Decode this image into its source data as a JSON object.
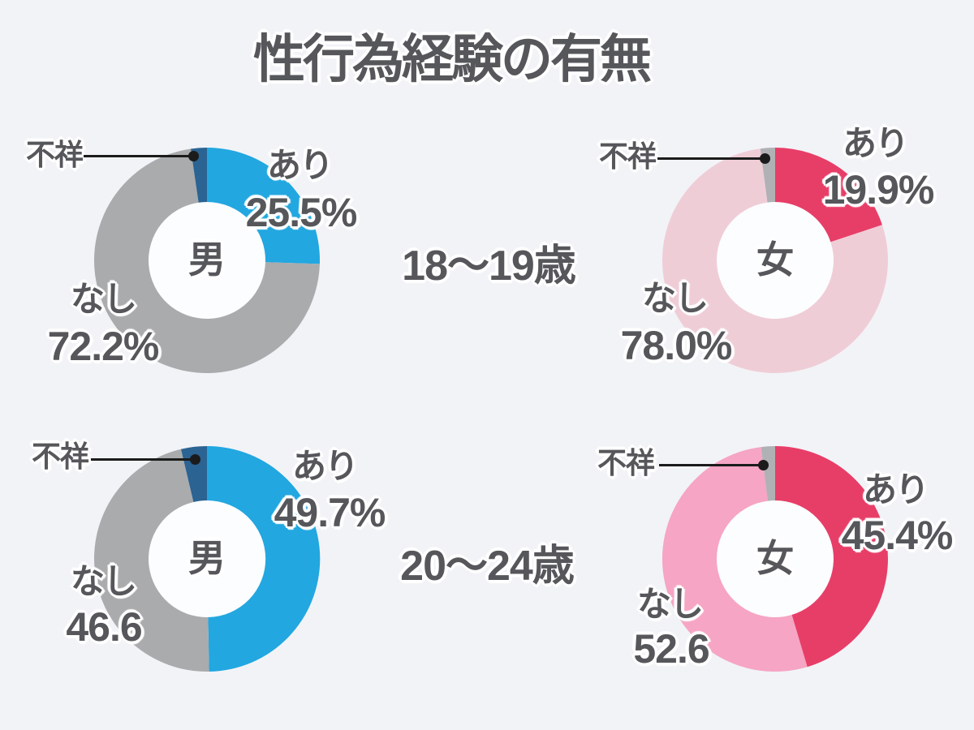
{
  "page": {
    "title": "性行為経験の有無",
    "background_color": "#f2f3f7",
    "text_color": "#56575b",
    "hole_color": "#fcfdfe",
    "leader_color": "#1b1b1b"
  },
  "age_groups": [
    {
      "label": "18〜19歳"
    },
    {
      "label": "20〜24歳"
    }
  ],
  "chart_data": [
    {
      "type": "pie",
      "variant": "donut",
      "age_group": "18〜19歳",
      "center_label": "男",
      "slices": [
        {
          "label": "あり",
          "value": 25.5,
          "value_text": "25.5%",
          "color": "#22a7e0"
        },
        {
          "label": "なし",
          "value": 72.2,
          "value_text": "72.2%",
          "color": "#a9abad"
        },
        {
          "label": "不祥",
          "value": 2.3,
          "value_text": "",
          "color": "#2b6392"
        }
      ]
    },
    {
      "type": "pie",
      "variant": "donut",
      "age_group": "18〜19歳",
      "center_label": "女",
      "slices": [
        {
          "label": "あり",
          "value": 19.9,
          "value_text": "19.9%",
          "color": "#e73e68"
        },
        {
          "label": "なし",
          "value": 78.0,
          "value_text": "78.0%",
          "color": "#efcdd7"
        },
        {
          "label": "不祥",
          "value": 2.1,
          "value_text": "",
          "color": "#b0b1b4"
        }
      ]
    },
    {
      "type": "pie",
      "variant": "donut",
      "age_group": "20〜24歳",
      "center_label": "男",
      "slices": [
        {
          "label": "あり",
          "value": 49.7,
          "value_text": "49.7%",
          "color": "#22a7e0"
        },
        {
          "label": "なし",
          "value": 46.6,
          "value_text": "46.6",
          "color": "#a9abad"
        },
        {
          "label": "不祥",
          "value": 3.7,
          "value_text": "",
          "color": "#2b6392"
        }
      ]
    },
    {
      "type": "pie",
      "variant": "donut",
      "age_group": "20〜24歳",
      "center_label": "女",
      "slices": [
        {
          "label": "あり",
          "value": 45.4,
          "value_text": "45.4%",
          "color": "#e73e68"
        },
        {
          "label": "なし",
          "value": 52.6,
          "value_text": "52.6",
          "color": "#f6a5c4"
        },
        {
          "label": "不祥",
          "value": 2.0,
          "value_text": "",
          "color": "#b0b1b4"
        }
      ]
    }
  ]
}
